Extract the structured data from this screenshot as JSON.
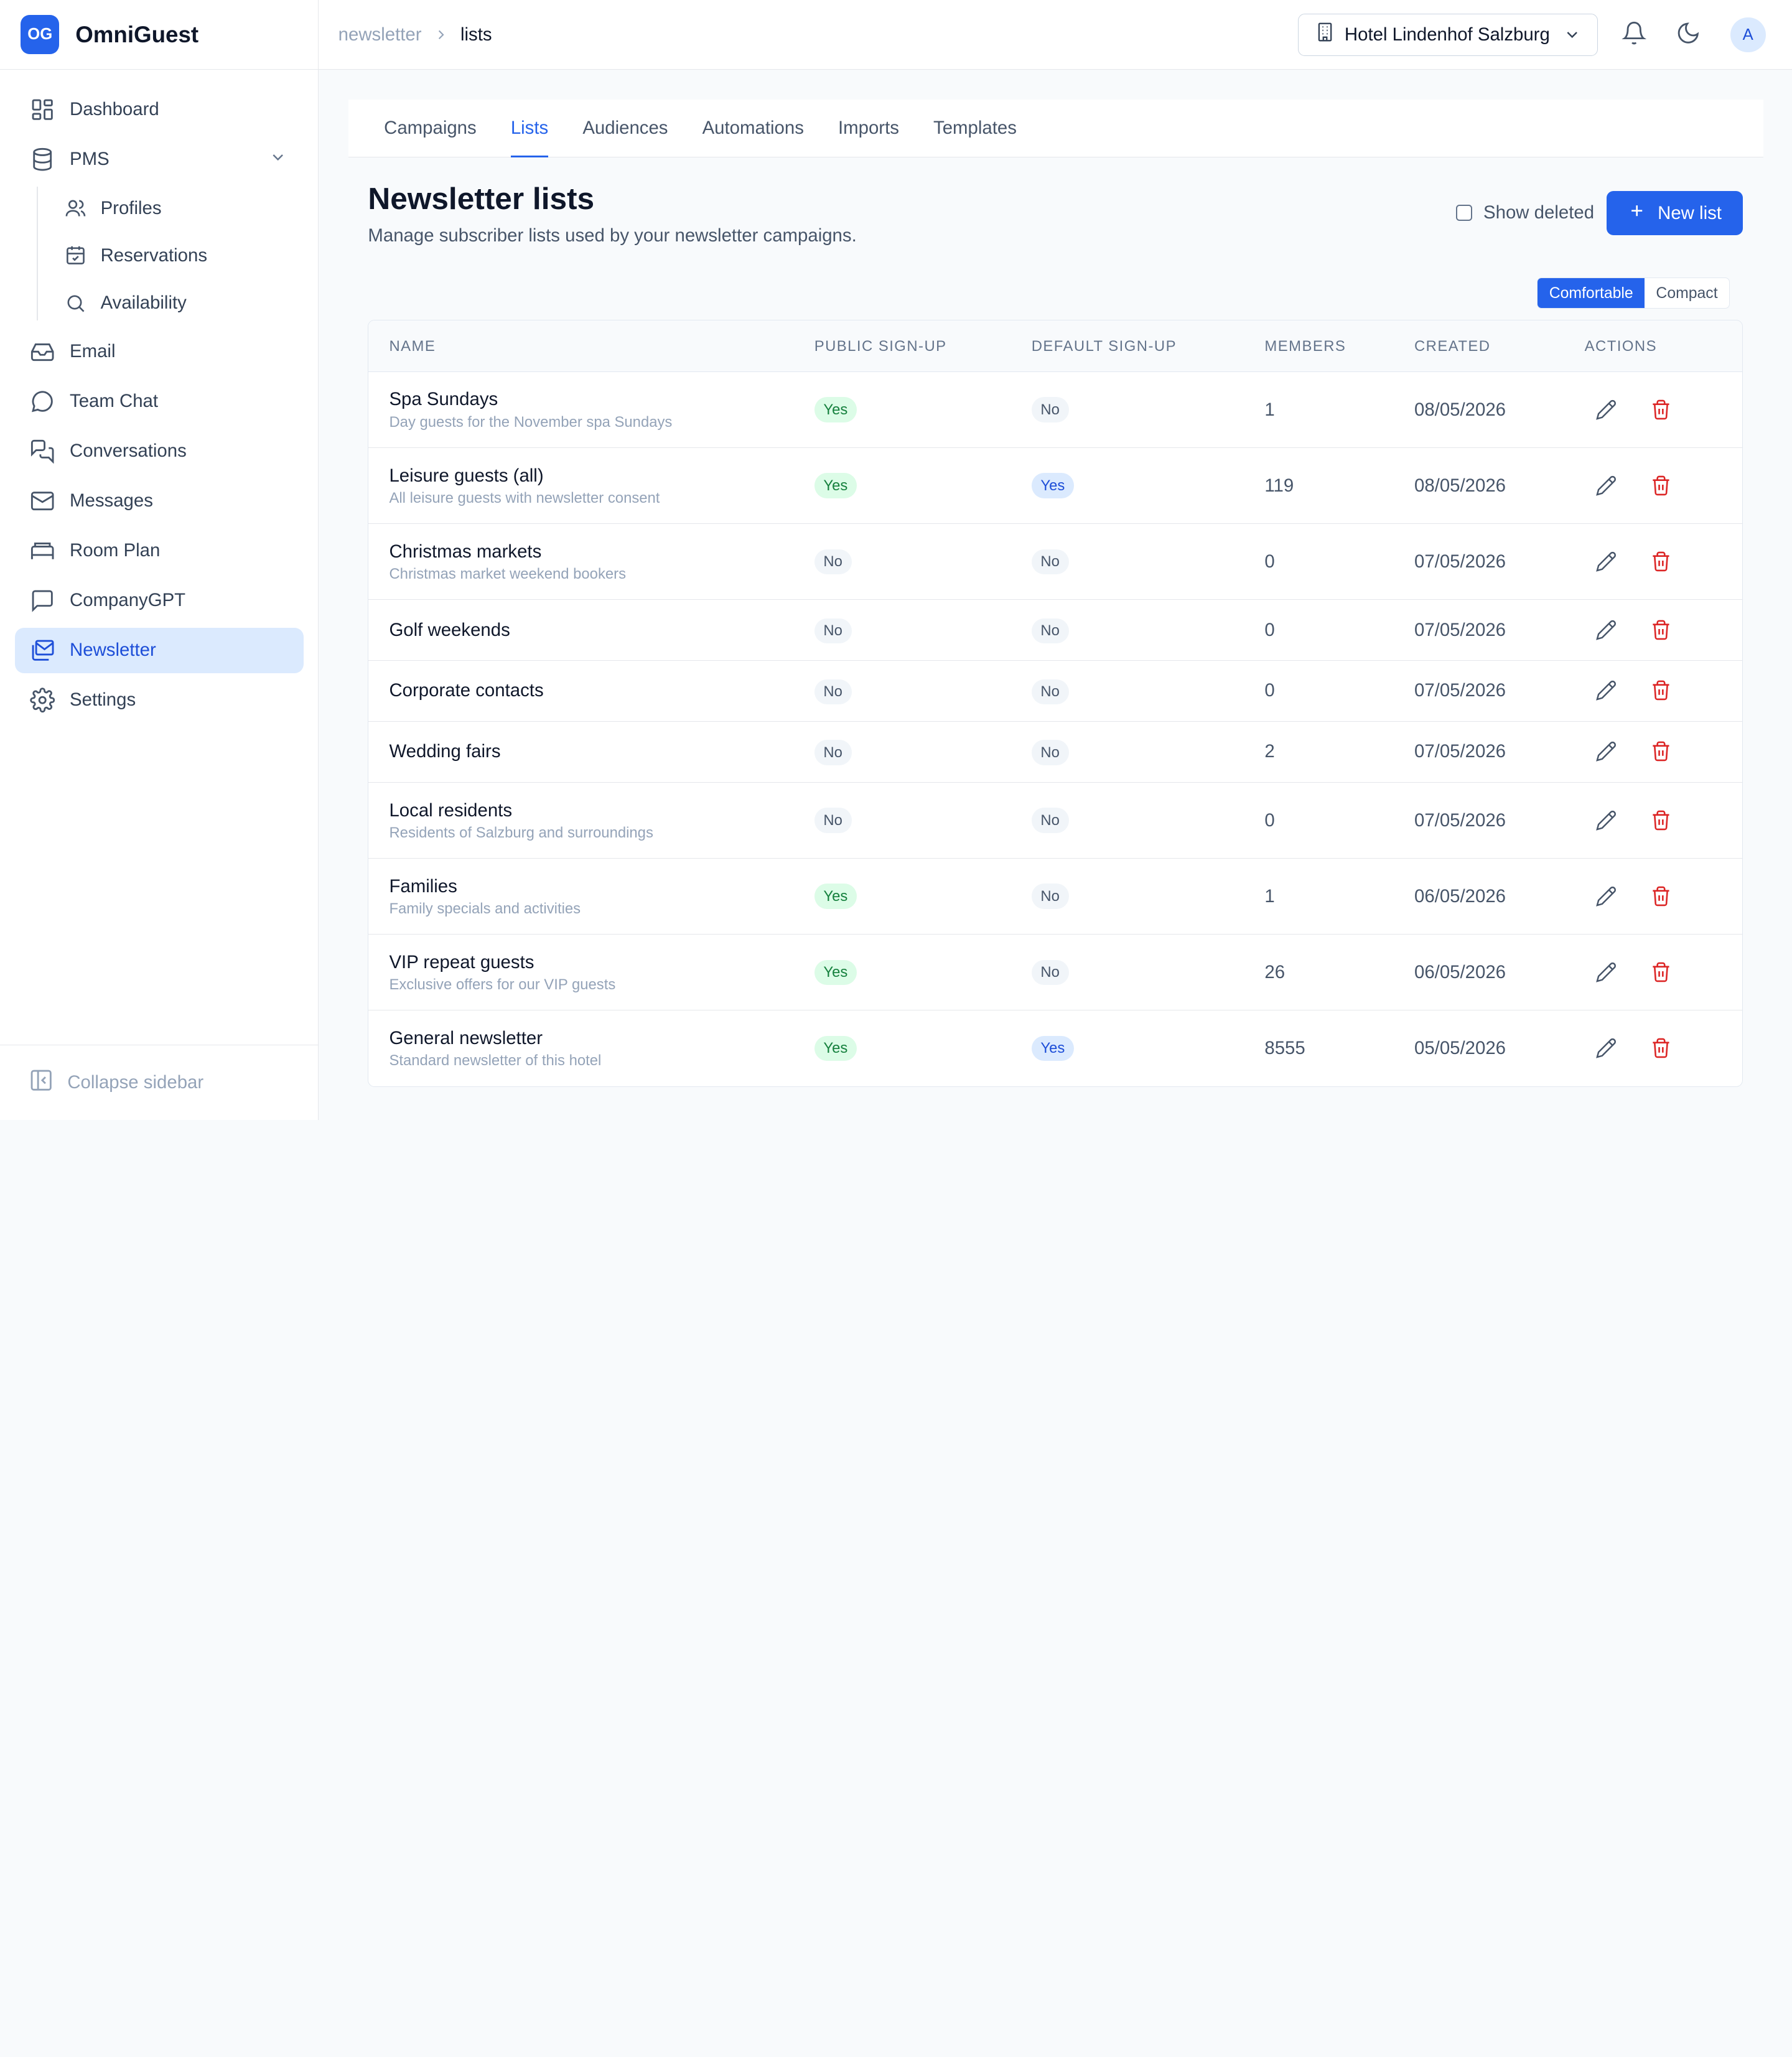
{
  "brand": {
    "logo": "OG",
    "name": "OmniGuest"
  },
  "sidebar": {
    "items": [
      {
        "label": "Dashboard",
        "icon": "dashboard-icon"
      },
      {
        "label": "PMS",
        "icon": "database-icon"
      },
      {
        "label": "Email",
        "icon": "inbox-icon"
      },
      {
        "label": "Team Chat",
        "icon": "chat-bubble-icon"
      },
      {
        "label": "Conversations",
        "icon": "conversations-icon"
      },
      {
        "label": "Messages",
        "icon": "mail-icon"
      },
      {
        "label": "Room Plan",
        "icon": "bed-icon"
      },
      {
        "label": "CompanyGPT",
        "icon": "message-square-icon"
      },
      {
        "label": "Newsletter",
        "icon": "newsletter-icon"
      },
      {
        "label": "Settings",
        "icon": "gear-icon"
      }
    ],
    "pms_sub": [
      {
        "label": "Profiles",
        "icon": "users-icon"
      },
      {
        "label": "Reservations",
        "icon": "calendar-check-icon"
      },
      {
        "label": "Availability",
        "icon": "search-icon"
      }
    ],
    "collapse_label": "Collapse sidebar"
  },
  "header": {
    "breadcrumb": [
      "newsletter",
      "lists"
    ],
    "hotel": "Hotel Lindenhof Salzburg",
    "avatar": "A"
  },
  "tabs": [
    "Campaigns",
    "Lists",
    "Audiences",
    "Automations",
    "Imports",
    "Templates"
  ],
  "active_tab": "Lists",
  "page": {
    "title": "Newsletter lists",
    "subtitle": "Manage subscriber lists used by your newsletter campaigns.",
    "show_deleted": "Show deleted",
    "new_button": "New list",
    "density": [
      "Comfortable",
      "Compact"
    ]
  },
  "table": {
    "columns": [
      "Name",
      "Public sign-up",
      "Default sign-up",
      "Members",
      "Created",
      "Actions"
    ],
    "rows": [
      {
        "name": "Spa Sundays",
        "desc": "Day guests for the November spa Sundays",
        "public": "Yes",
        "default": "No",
        "members": "1",
        "created": "08/05/2026"
      },
      {
        "name": "Leisure guests (all)",
        "desc": "All leisure guests with newsletter consent",
        "public": "Yes",
        "default": "Yes",
        "members": "119",
        "created": "08/05/2026"
      },
      {
        "name": "Christmas markets",
        "desc": "Christmas market weekend bookers",
        "public": "No",
        "default": "No",
        "members": "0",
        "created": "07/05/2026"
      },
      {
        "name": "Golf weekends",
        "desc": "",
        "public": "No",
        "default": "No",
        "members": "0",
        "created": "07/05/2026"
      },
      {
        "name": "Corporate contacts",
        "desc": "",
        "public": "No",
        "default": "No",
        "members": "0",
        "created": "07/05/2026"
      },
      {
        "name": "Wedding fairs",
        "desc": "",
        "public": "No",
        "default": "No",
        "members": "2",
        "created": "07/05/2026"
      },
      {
        "name": "Local residents",
        "desc": "Residents of Salzburg and surroundings",
        "public": "No",
        "default": "No",
        "members": "0",
        "created": "07/05/2026"
      },
      {
        "name": "Families",
        "desc": "Family specials and activities",
        "public": "Yes",
        "default": "No",
        "members": "1",
        "created": "06/05/2026"
      },
      {
        "name": "VIP repeat guests",
        "desc": "Exclusive offers for our VIP guests",
        "public": "Yes",
        "default": "No",
        "members": "26",
        "created": "06/05/2026"
      },
      {
        "name": "General newsletter",
        "desc": "Standard newsletter of this hotel",
        "public": "Yes",
        "default": "Yes",
        "members": "8555",
        "created": "05/05/2026"
      }
    ]
  },
  "colors": {
    "accent": "#2563eb",
    "active_bg": "#dbeafe",
    "yes_green": "#15803d",
    "delete_red": "#dc2626"
  }
}
